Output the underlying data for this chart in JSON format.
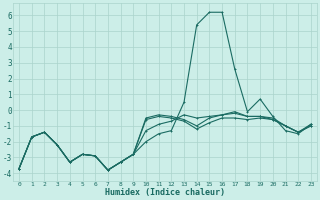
{
  "xlabel": "Humidex (Indice chaleur)",
  "x": [
    0,
    1,
    2,
    3,
    4,
    5,
    6,
    7,
    8,
    9,
    10,
    11,
    12,
    13,
    14,
    15,
    16,
    17,
    18,
    19,
    20,
    21,
    22,
    23
  ],
  "line1": [
    -3.7,
    -1.7,
    -1.4,
    -2.2,
    -3.3,
    -2.8,
    -2.9,
    -3.8,
    -3.3,
    -2.8,
    -2.0,
    -1.5,
    -1.3,
    0.5,
    5.4,
    6.2,
    6.2,
    2.6,
    -0.1,
    0.7,
    -0.4,
    -1.3,
    -1.5,
    -0.9
  ],
  "line2": [
    -3.7,
    -1.7,
    -1.4,
    -2.2,
    -3.3,
    -2.8,
    -2.9,
    -3.8,
    -3.3,
    -2.8,
    -1.3,
    -0.9,
    -0.7,
    -0.3,
    -0.5,
    -0.4,
    -0.3,
    -0.2,
    -0.4,
    -0.4,
    -0.6,
    -1.0,
    -1.4,
    -1.0
  ],
  "line3": [
    -3.7,
    -1.7,
    -1.4,
    -2.2,
    -3.3,
    -2.8,
    -2.9,
    -3.8,
    -3.3,
    -2.8,
    -0.6,
    -0.4,
    -0.5,
    -0.7,
    -1.2,
    -0.8,
    -0.5,
    -0.5,
    -0.6,
    -0.5,
    -0.6,
    -1.0,
    -1.4,
    -1.0
  ],
  "line4": [
    -3.7,
    -1.7,
    -1.4,
    -2.2,
    -3.3,
    -2.8,
    -2.9,
    -3.8,
    -3.3,
    -2.8,
    -0.5,
    -0.3,
    -0.4,
    -0.6,
    -1.0,
    -0.5,
    -0.3,
    -0.1,
    -0.4,
    -0.4,
    -0.5,
    -1.0,
    -1.4,
    -0.9
  ],
  "bg_color": "#cceee8",
  "line_color": "#1a6b62",
  "grid_color": "#aad4cc",
  "ylim": [
    -4.5,
    6.8
  ],
  "xlim": [
    -0.5,
    23.5
  ],
  "yticks": [
    -4,
    -3,
    -2,
    -1,
    0,
    1,
    2,
    3,
    4,
    5,
    6
  ],
  "xticks": [
    0,
    1,
    2,
    3,
    4,
    5,
    6,
    7,
    8,
    9,
    10,
    11,
    12,
    13,
    14,
    15,
    16,
    17,
    18,
    19,
    20,
    21,
    22,
    23
  ]
}
